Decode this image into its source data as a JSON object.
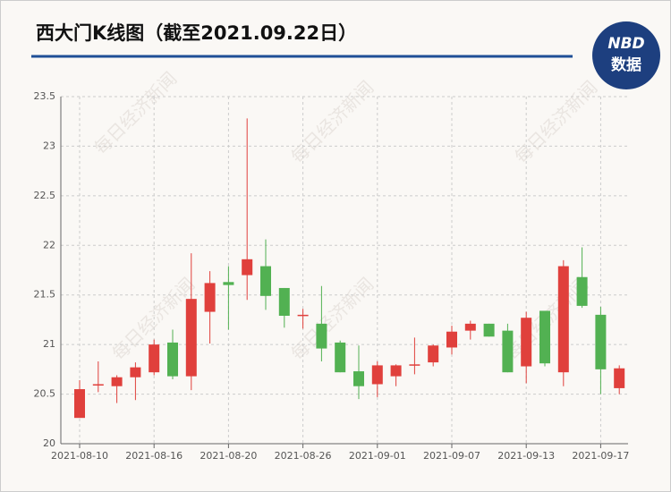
{
  "chart_data": {
    "type": "candlestick",
    "title": "西大门K线图（截至2021.09.22日）",
    "logo": [
      "NBD",
      "数据"
    ],
    "watermark": "每日经济新闻",
    "categories": [
      "2021-08-10",
      null,
      null,
      null,
      "2021-08-16",
      null,
      null,
      null,
      "2021-08-20",
      null,
      null,
      null,
      "2021-08-26",
      null,
      null,
      null,
      "2021-09-01",
      null,
      null,
      null,
      "2021-09-07",
      null,
      null,
      null,
      "2021-09-13",
      null,
      null,
      null,
      "2021-09-17",
      null
    ],
    "open": [
      20.26,
      20.59,
      20.58,
      20.67,
      20.72,
      21.02,
      20.68,
      21.33,
      21.63,
      21.7,
      21.79,
      21.57,
      21.29,
      21.21,
      21.02,
      20.73,
      20.6,
      20.68,
      20.79,
      20.82,
      20.97,
      21.14,
      21.21,
      21.14,
      20.78,
      21.34,
      20.72,
      21.68,
      21.3,
      20.56
    ],
    "high": [
      20.64,
      20.83,
      20.69,
      20.82,
      21.05,
      21.15,
      21.92,
      21.74,
      21.79,
      23.28,
      22.06,
      21.57,
      21.36,
      21.59,
      21.04,
      20.99,
      20.83,
      20.8,
      21.07,
      21.0,
      21.19,
      21.24,
      21.21,
      21.21,
      21.33,
      21.34,
      21.85,
      21.98,
      21.38,
      20.79
    ],
    "low": [
      20.26,
      20.52,
      20.41,
      20.44,
      20.69,
      20.65,
      20.54,
      21.01,
      21.15,
      21.45,
      21.35,
      21.17,
      21.16,
      20.83,
      20.72,
      20.45,
      20.47,
      20.58,
      20.7,
      20.78,
      20.9,
      21.05,
      21.08,
      20.72,
      20.61,
      20.78,
      20.58,
      21.37,
      20.5,
      20.5
    ],
    "close": [
      20.55,
      20.6,
      20.67,
      20.77,
      21.0,
      20.68,
      21.46,
      21.62,
      21.6,
      21.86,
      21.49,
      21.29,
      21.3,
      20.96,
      20.72,
      20.58,
      20.79,
      20.79,
      20.8,
      20.99,
      21.13,
      21.21,
      21.08,
      20.72,
      21.27,
      20.81,
      21.79,
      21.39,
      20.75,
      20.76
    ],
    "up_color": "#e0403c",
    "down_color": "#52b152",
    "ylim": [
      20,
      23.5
    ],
    "yticks": [
      20,
      20.5,
      21,
      21.5,
      22,
      22.5,
      23,
      23.5
    ],
    "grid": true
  }
}
